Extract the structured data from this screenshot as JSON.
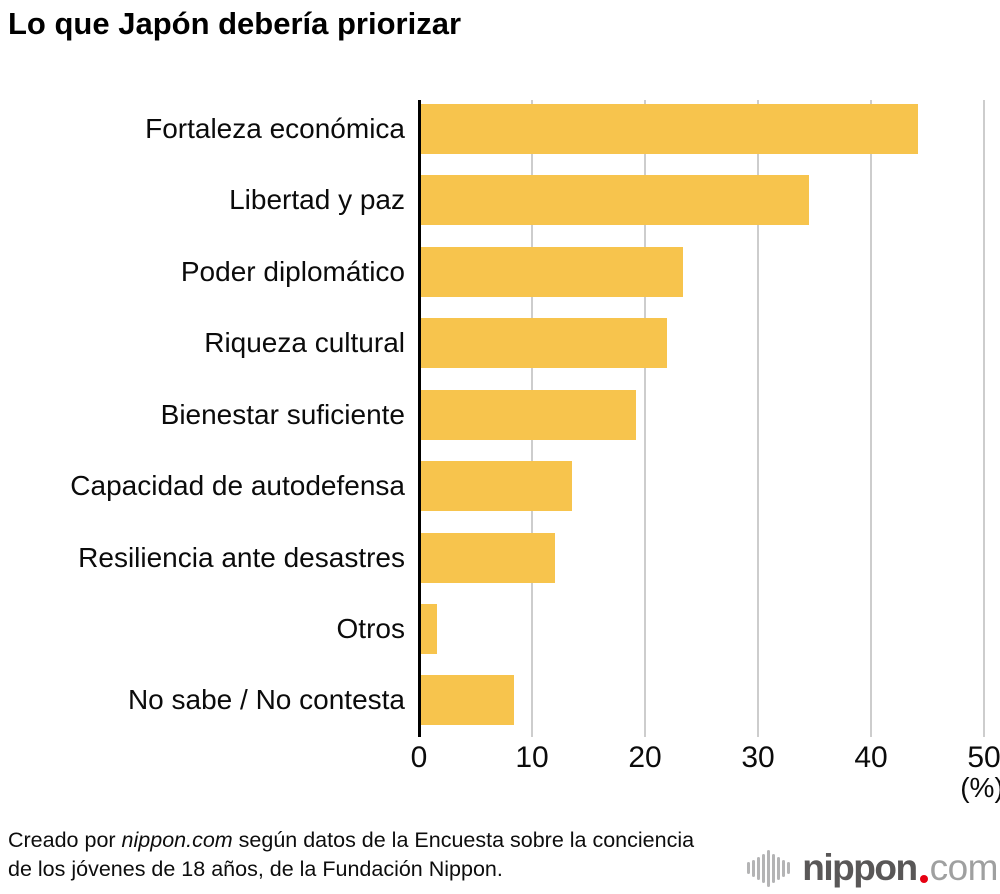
{
  "chart_data": {
    "type": "bar",
    "orientation": "horizontal",
    "title": "Lo que Japón debería priorizar",
    "categories": [
      "Fortaleza económica",
      "Libertad y paz",
      "Poder diplomático",
      "Riqueza cultural",
      "Bienestar suficiente",
      "Capacidad de autodefensa",
      "Resiliencia ante desastres",
      "Otros",
      "No sabe / No contesta"
    ],
    "values": [
      44.0,
      34.4,
      23.2,
      21.8,
      19.1,
      13.4,
      11.9,
      1.5,
      8.3
    ],
    "xlabel": "",
    "ylabel": "",
    "xlim": [
      0,
      50
    ],
    "xticks": [
      0,
      10,
      20,
      30,
      40,
      50
    ],
    "unit_label": "(%)",
    "grid": true,
    "legend": false,
    "bar_color": "#f7c44d",
    "gridline_color": "#cdcdcd",
    "axis_color": "#000000"
  },
  "footer": {
    "credit_prefix": "Creado por ",
    "credit_source": "nippon.com",
    "credit_suffix": " según datos de la Encuesta sobre la conciencia de los jóvenes de 18 años, de la Fundación Nippon.",
    "logo": {
      "icon": "soundwave-bars-icon",
      "name": "nippon",
      "dot": ".",
      "tld": "com",
      "name_color": "#595757",
      "dot_color": "#e60012",
      "tld_color": "#9fa0a0",
      "icon_bar_heights": [
        12,
        17,
        23,
        29,
        37,
        29,
        23,
        17,
        12
      ]
    }
  }
}
